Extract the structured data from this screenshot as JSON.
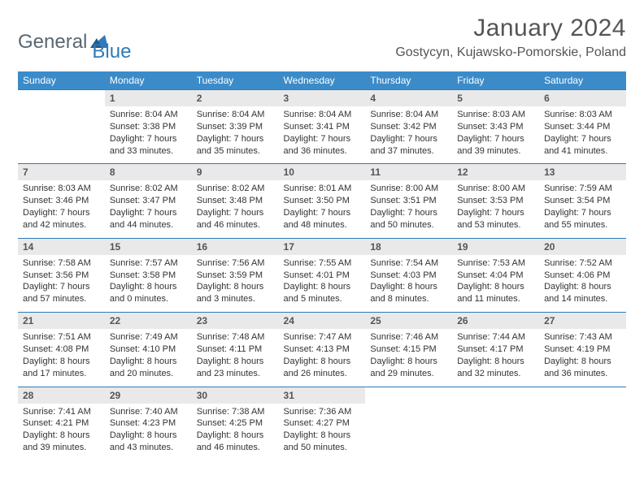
{
  "brand": {
    "word1": "General",
    "word2": "Blue"
  },
  "title": "January 2024",
  "location": "Gostycyn, Kujawsko-Pomorskie, Poland",
  "colors": {
    "header_bg": "#3b8bc9",
    "header_text": "#ffffff",
    "daynum_bg": "#e9e9e9",
    "border": "#2f7ab9",
    "brand_gray": "#5a6770",
    "brand_blue": "#2f7ab9"
  },
  "weekdays": [
    "Sunday",
    "Monday",
    "Tuesday",
    "Wednesday",
    "Thursday",
    "Friday",
    "Saturday"
  ],
  "weeks": [
    [
      null,
      {
        "n": "1",
        "sr": "8:04 AM",
        "ss": "3:38 PM",
        "dl": "7 hours and 33 minutes."
      },
      {
        "n": "2",
        "sr": "8:04 AM",
        "ss": "3:39 PM",
        "dl": "7 hours and 35 minutes."
      },
      {
        "n": "3",
        "sr": "8:04 AM",
        "ss": "3:41 PM",
        "dl": "7 hours and 36 minutes."
      },
      {
        "n": "4",
        "sr": "8:04 AM",
        "ss": "3:42 PM",
        "dl": "7 hours and 37 minutes."
      },
      {
        "n": "5",
        "sr": "8:03 AM",
        "ss": "3:43 PM",
        "dl": "7 hours and 39 minutes."
      },
      {
        "n": "6",
        "sr": "8:03 AM",
        "ss": "3:44 PM",
        "dl": "7 hours and 41 minutes."
      }
    ],
    [
      {
        "n": "7",
        "sr": "8:03 AM",
        "ss": "3:46 PM",
        "dl": "7 hours and 42 minutes."
      },
      {
        "n": "8",
        "sr": "8:02 AM",
        "ss": "3:47 PM",
        "dl": "7 hours and 44 minutes."
      },
      {
        "n": "9",
        "sr": "8:02 AM",
        "ss": "3:48 PM",
        "dl": "7 hours and 46 minutes."
      },
      {
        "n": "10",
        "sr": "8:01 AM",
        "ss": "3:50 PM",
        "dl": "7 hours and 48 minutes."
      },
      {
        "n": "11",
        "sr": "8:00 AM",
        "ss": "3:51 PM",
        "dl": "7 hours and 50 minutes."
      },
      {
        "n": "12",
        "sr": "8:00 AM",
        "ss": "3:53 PM",
        "dl": "7 hours and 53 minutes."
      },
      {
        "n": "13",
        "sr": "7:59 AM",
        "ss": "3:54 PM",
        "dl": "7 hours and 55 minutes."
      }
    ],
    [
      {
        "n": "14",
        "sr": "7:58 AM",
        "ss": "3:56 PM",
        "dl": "7 hours and 57 minutes."
      },
      {
        "n": "15",
        "sr": "7:57 AM",
        "ss": "3:58 PM",
        "dl": "8 hours and 0 minutes."
      },
      {
        "n": "16",
        "sr": "7:56 AM",
        "ss": "3:59 PM",
        "dl": "8 hours and 3 minutes."
      },
      {
        "n": "17",
        "sr": "7:55 AM",
        "ss": "4:01 PM",
        "dl": "8 hours and 5 minutes."
      },
      {
        "n": "18",
        "sr": "7:54 AM",
        "ss": "4:03 PM",
        "dl": "8 hours and 8 minutes."
      },
      {
        "n": "19",
        "sr": "7:53 AM",
        "ss": "4:04 PM",
        "dl": "8 hours and 11 minutes."
      },
      {
        "n": "20",
        "sr": "7:52 AM",
        "ss": "4:06 PM",
        "dl": "8 hours and 14 minutes."
      }
    ],
    [
      {
        "n": "21",
        "sr": "7:51 AM",
        "ss": "4:08 PM",
        "dl": "8 hours and 17 minutes."
      },
      {
        "n": "22",
        "sr": "7:49 AM",
        "ss": "4:10 PM",
        "dl": "8 hours and 20 minutes."
      },
      {
        "n": "23",
        "sr": "7:48 AM",
        "ss": "4:11 PM",
        "dl": "8 hours and 23 minutes."
      },
      {
        "n": "24",
        "sr": "7:47 AM",
        "ss": "4:13 PM",
        "dl": "8 hours and 26 minutes."
      },
      {
        "n": "25",
        "sr": "7:46 AM",
        "ss": "4:15 PM",
        "dl": "8 hours and 29 minutes."
      },
      {
        "n": "26",
        "sr": "7:44 AM",
        "ss": "4:17 PM",
        "dl": "8 hours and 32 minutes."
      },
      {
        "n": "27",
        "sr": "7:43 AM",
        "ss": "4:19 PM",
        "dl": "8 hours and 36 minutes."
      }
    ],
    [
      {
        "n": "28",
        "sr": "7:41 AM",
        "ss": "4:21 PM",
        "dl": "8 hours and 39 minutes."
      },
      {
        "n": "29",
        "sr": "7:40 AM",
        "ss": "4:23 PM",
        "dl": "8 hours and 43 minutes."
      },
      {
        "n": "30",
        "sr": "7:38 AM",
        "ss": "4:25 PM",
        "dl": "8 hours and 46 minutes."
      },
      {
        "n": "31",
        "sr": "7:36 AM",
        "ss": "4:27 PM",
        "dl": "8 hours and 50 minutes."
      },
      null,
      null,
      null
    ]
  ]
}
